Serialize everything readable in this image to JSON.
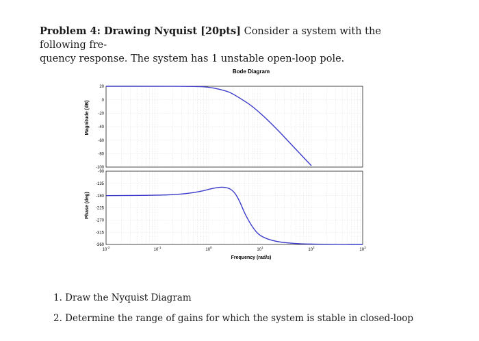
{
  "problem": {
    "title": "Problem 4: Drawing Nyquist [20pts]",
    "text_line1": "Consider a system with the following fre-",
    "text_line2": "quency response. The system has 1 unstable open-loop pole."
  },
  "chart_data": [
    {
      "type": "line",
      "title": "Bode Diagram",
      "ylabel": "Magnitude (dB)",
      "xlabel": "",
      "x_scale": "log",
      "xlim": [
        0.01,
        1000
      ],
      "ylim": [
        -100,
        20
      ],
      "yticks": [
        "20",
        "0",
        "-20",
        "-40",
        "-60",
        "-80",
        "-100"
      ],
      "grid": true,
      "series": [
        {
          "x": [
            0.01,
            0.1,
            0.5,
            1,
            2,
            3,
            10,
            100
          ],
          "y": [
            20,
            20,
            19.8,
            19,
            14,
            9,
            -17,
            -98
          ]
        }
      ]
    },
    {
      "type": "line",
      "ylabel": "Phase (deg)",
      "xlabel": "Frequency (rad/s)",
      "x_scale": "log",
      "xlim": [
        0.01,
        1000
      ],
      "ylim": [
        -360,
        -90
      ],
      "yticks": [
        "-90",
        "-135",
        "-180",
        "-225",
        "-270",
        "-315",
        "-360"
      ],
      "xticks": [
        "10-2",
        "10-1",
        "100",
        "101",
        "102",
        "103"
      ],
      "grid": true,
      "series": [
        {
          "x": [
            0.01,
            0.1,
            0.3,
            0.7,
            1.2,
            1.8,
            2.5,
            3.2,
            4,
            5,
            7,
            10,
            20,
            50,
            100,
            1000
          ],
          "y": [
            -180,
            -179,
            -175,
            -165,
            -153,
            -148,
            -152,
            -168,
            -200,
            -245,
            -295,
            -330,
            -350,
            -357,
            -359,
            -360
          ]
        }
      ]
    }
  ],
  "tasks": [
    "1. Draw the Nyquist Diagram",
    "2. Determine the range of gains for which the system is stable in closed-loop"
  ],
  "colors": {
    "line": "#3a3acb",
    "axis": "#000000",
    "grid": "#cccccc"
  }
}
